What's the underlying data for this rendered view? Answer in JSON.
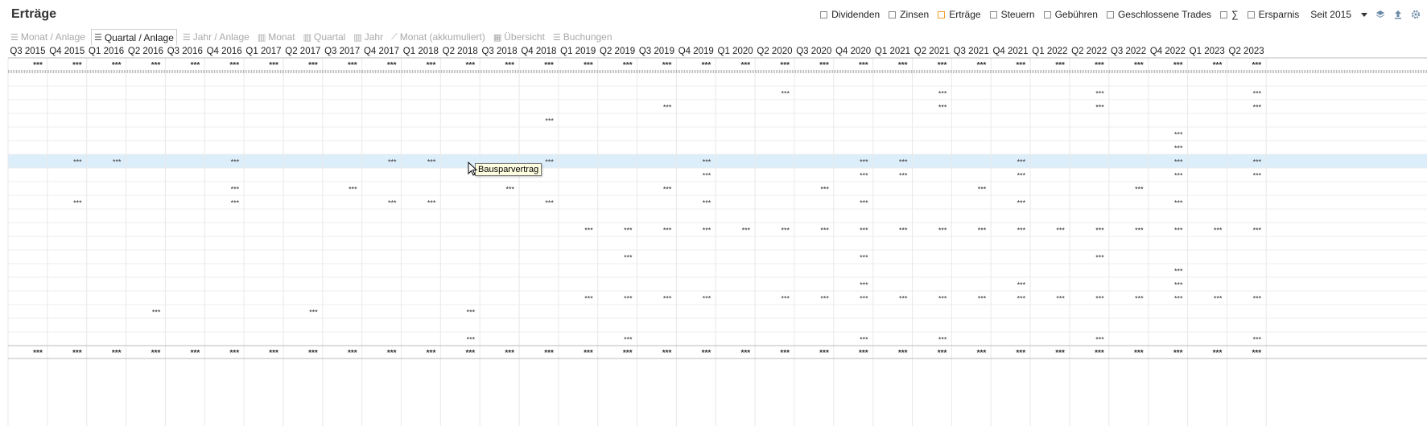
{
  "title": "Erträge",
  "filters": [
    {
      "label": "Dividenden",
      "checked": false
    },
    {
      "label": "Zinsen",
      "checked": false
    },
    {
      "label": "Erträge",
      "checked": true
    },
    {
      "label": "Steuern",
      "checked": false
    },
    {
      "label": "Gebühren",
      "checked": false
    },
    {
      "label": "Geschlossene Trades",
      "checked": false
    },
    {
      "label": "∑",
      "checked": false
    },
    {
      "label": "Ersparnis",
      "checked": false
    }
  ],
  "period": {
    "selected": "Seit 2015"
  },
  "tabs": [
    {
      "label": "Monat / Anlage",
      "active": false,
      "icon": "list-icon"
    },
    {
      "label": "Quartal / Anlage",
      "active": true,
      "icon": "list-icon"
    },
    {
      "label": "Jahr / Anlage",
      "active": false,
      "icon": "list-icon"
    },
    {
      "label": "Monat",
      "active": false,
      "icon": "bar-chart-icon"
    },
    {
      "label": "Quartal",
      "active": false,
      "icon": "bar-chart-icon"
    },
    {
      "label": "Jahr",
      "active": false,
      "icon": "bar-chart-icon"
    },
    {
      "label": "Monat (akkumuliert)",
      "active": false,
      "icon": "line-chart-icon"
    },
    {
      "label": "Übersicht",
      "active": false,
      "icon": "table-icon"
    },
    {
      "label": "Buchungen",
      "active": false,
      "icon": "list-icon"
    }
  ],
  "quarters": [
    "Q3 2015",
    "Q4 2015",
    "Q1 2016",
    "Q2 2016",
    "Q3 2016",
    "Q4 2016",
    "Q1 2017",
    "Q2 2017",
    "Q3 2017",
    "Q4 2017",
    "Q1 2018",
    "Q2 2018",
    "Q3 2018",
    "Q4 2018",
    "Q1 2019",
    "Q2 2019",
    "Q3 2019",
    "Q4 2019",
    "Q1 2020",
    "Q2 2020",
    "Q3 2020",
    "Q4 2020",
    "Q1 2021",
    "Q2 2021",
    "Q3 2021",
    "Q4 2021",
    "Q1 2022",
    "Q2 2022",
    "Q3 2022",
    "Q4 2022",
    "Q1 2023",
    "Q2 2023"
  ],
  "masked_value": "***",
  "total_row": "all",
  "rows": [
    [],
    [
      19,
      23,
      27,
      31
    ],
    [
      16,
      23,
      27,
      31
    ],
    [
      13
    ],
    [
      29
    ],
    [
      29
    ],
    [
      1,
      2,
      5,
      9,
      10,
      13,
      17,
      21,
      22,
      25,
      29,
      31
    ],
    [
      17,
      21,
      22,
      25,
      29,
      31
    ],
    [
      5,
      8,
      12,
      16,
      20,
      24,
      28
    ],
    [
      1,
      5,
      9,
      10,
      13,
      17,
      21,
      25,
      29
    ],
    [],
    [
      14,
      15,
      16,
      17,
      18,
      19,
      20,
      21,
      22,
      23,
      24,
      25,
      26,
      27,
      28,
      29,
      30,
      31
    ],
    [],
    [
      15,
      21,
      27
    ],
    [
      29
    ],
    [
      21,
      25,
      29
    ],
    [
      14,
      15,
      16,
      17,
      19,
      20,
      21,
      22,
      23,
      24,
      25,
      26,
      27,
      28,
      29,
      30,
      31
    ],
    [
      3,
      7,
      11
    ],
    [],
    [
      11,
      15,
      21,
      23,
      27,
      31
    ]
  ],
  "highlighted_row": 6,
  "tooltip": "Bausparvertrag",
  "colors": {
    "highlight": "#ddeefb",
    "accent": "#f0a030",
    "grid": "#e8e8e8"
  }
}
